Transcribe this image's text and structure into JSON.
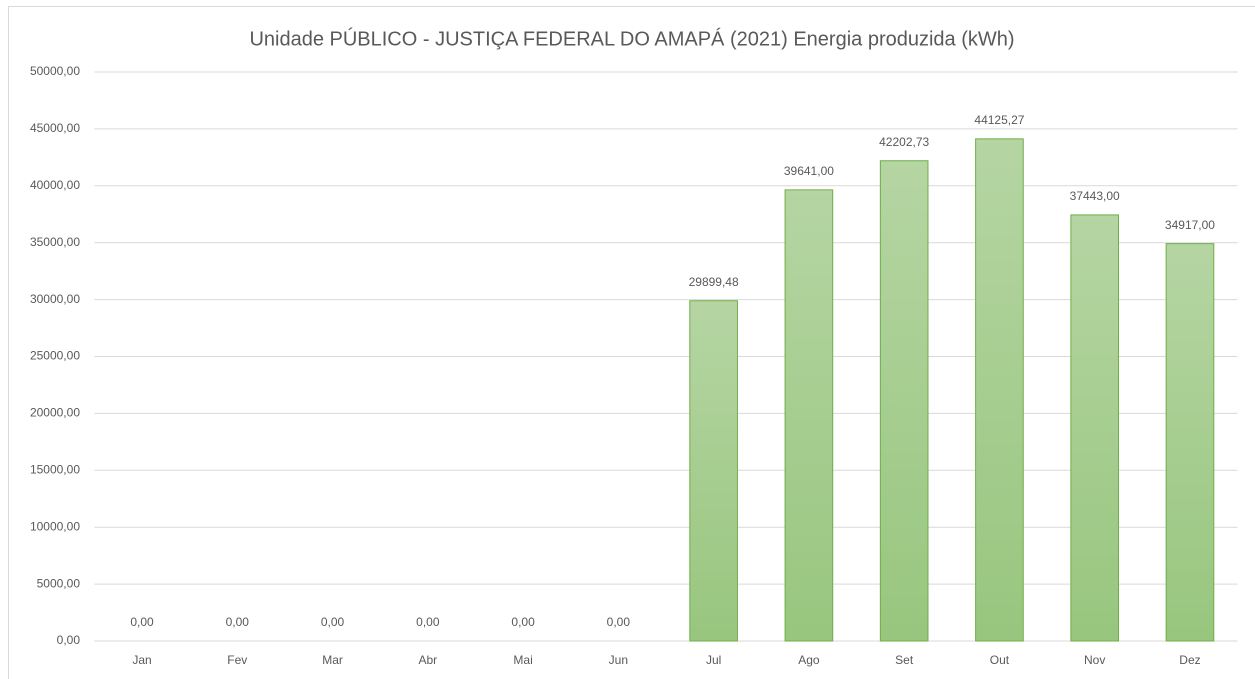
{
  "chart_data": {
    "type": "bar",
    "title": "Unidade PÚBLICO - JUSTIÇA FEDERAL DO AMAPÁ (2021) Energia produzida (kWh)",
    "categories": [
      "Jan",
      "Fev",
      "Mar",
      "Abr",
      "Mai",
      "Jun",
      "Jul",
      "Ago",
      "Set",
      "Out",
      "Nov",
      "Dez"
    ],
    "values": [
      0,
      0,
      0,
      0,
      0,
      0,
      29899.48,
      39641,
      42202.73,
      44125.27,
      37443,
      34917
    ],
    "value_labels": [
      "0,00",
      "0,00",
      "0,00",
      "0,00",
      "0,00",
      "0,00",
      "29899,48",
      "39641,00",
      "42202,73",
      "44125,27",
      "37443,00",
      "34917,00"
    ],
    "color": "#70ad47",
    "ylim": [
      0,
      50000
    ],
    "yticks": [
      {
        "value": 0,
        "label": "0,00"
      },
      {
        "value": 5000,
        "label": "5000,00"
      },
      {
        "value": 10000,
        "label": "10000,00"
      },
      {
        "value": 15000,
        "label": "15000,00"
      },
      {
        "value": 20000,
        "label": "20000,00"
      },
      {
        "value": 25000,
        "label": "25000,00"
      },
      {
        "value": 30000,
        "label": "30000,00"
      },
      {
        "value": 35000,
        "label": "35000,00"
      },
      {
        "value": 40000,
        "label": "40000,00"
      },
      {
        "value": 45000,
        "label": "45000,00"
      },
      {
        "value": 50000,
        "label": "50000,00"
      }
    ],
    "grid": true
  }
}
